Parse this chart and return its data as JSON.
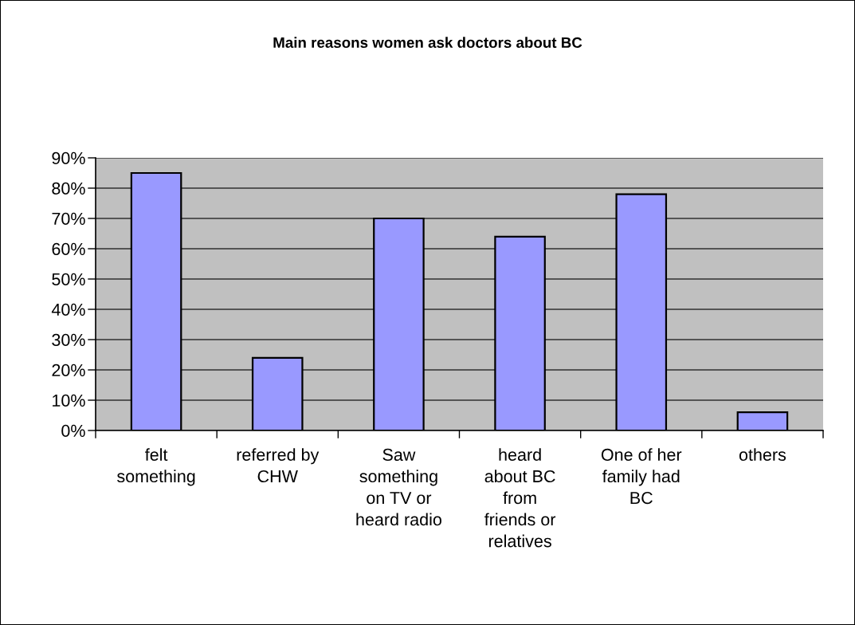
{
  "chart_data": {
    "type": "bar",
    "title": "Main reasons women ask doctors about BC",
    "categories": [
      "felt\nsomething",
      "referred by\nCHW",
      "Saw\nsomething\non TV or\nheard radio",
      "heard\nabout BC\nfrom\nfriends or\nrelatives",
      "One of her\nfamily had\nBC",
      "others"
    ],
    "values": [
      85,
      24,
      70,
      64,
      78,
      6
    ],
    "color": "#9999ff",
    "ylim": [
      0,
      90
    ],
    "yticks": [
      {
        "value": 0,
        "label": "0%"
      },
      {
        "value": 10,
        "label": "10%"
      },
      {
        "value": 20,
        "label": "20%"
      },
      {
        "value": 30,
        "label": "30%"
      },
      {
        "value": 40,
        "label": "40%"
      },
      {
        "value": 50,
        "label": "50%"
      },
      {
        "value": 60,
        "label": "60%"
      },
      {
        "value": 70,
        "label": "70%"
      },
      {
        "value": 80,
        "label": "80%"
      },
      {
        "value": 90,
        "label": "90%"
      }
    ],
    "grid": "y"
  }
}
